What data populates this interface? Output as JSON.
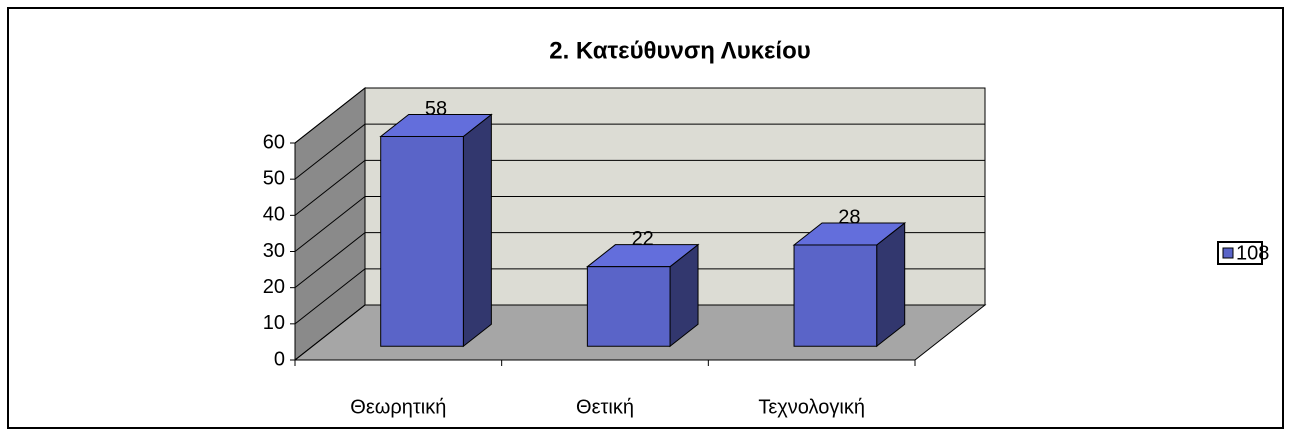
{
  "chart_data": {
    "type": "bar3d",
    "title": "2. Κατεύθυνση Λυκείου",
    "categories": [
      "Θεωρητική",
      "Θετική",
      "Τεχνολογική"
    ],
    "series": [
      {
        "name": "108",
        "color": "#5a64c8",
        "values": [
          58,
          22,
          28
        ]
      }
    ],
    "ylim": [
      0,
      60
    ],
    "yticks": [
      0,
      10,
      20,
      30,
      40,
      50,
      60
    ],
    "grid": true,
    "legend": "right"
  }
}
